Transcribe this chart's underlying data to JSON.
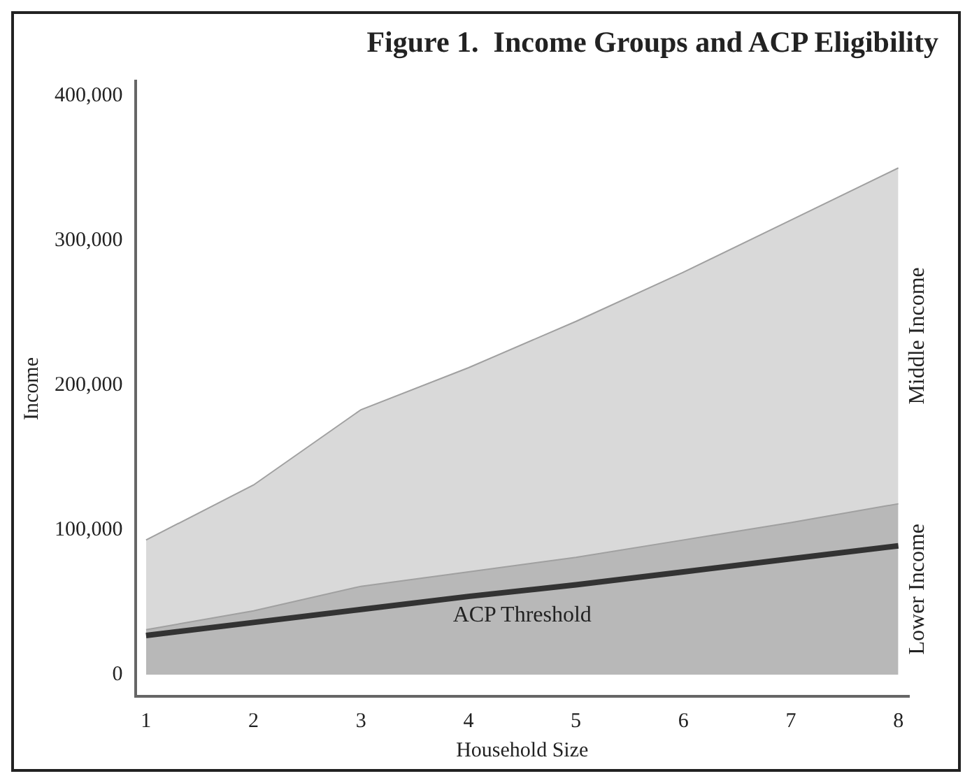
{
  "chart_data": {
    "type": "area",
    "title": "Figure 1.  Income Groups and ACP Eligibility",
    "xlabel": "Household Size",
    "ylabel": "Income",
    "x": [
      1,
      2,
      3,
      4,
      5,
      6,
      7,
      8
    ],
    "stacked": true,
    "series": [
      {
        "name": "Lower Income",
        "color": "#b8b8b8",
        "values": [
          31000,
          44000,
          61000,
          71000,
          81000,
          93000,
          105000,
          118000
        ]
      },
      {
        "name": "Middle Income",
        "color": "#d9d9d9",
        "values": [
          62000,
          87000,
          122000,
          141000,
          163000,
          185000,
          209000,
          232000
        ]
      },
      {
        "name": "ACP Threshold",
        "type": "line",
        "color": "#333333",
        "values": [
          27000,
          36000,
          45000,
          54000,
          62000,
          71000,
          80000,
          89000
        ]
      }
    ],
    "xlim": [
      0.9,
      8.1
    ],
    "xticks": [
      1,
      2,
      3,
      4,
      5,
      6,
      7,
      8
    ],
    "ylim": [
      -15000,
      410000
    ],
    "yticks": [
      0,
      {
        "value": 100000,
        "label": "100,000"
      },
      {
        "value": 200000,
        "label": "200,000"
      },
      {
        "value": 300000,
        "label": "300,000"
      },
      {
        "value": 400000,
        "label": "400,000"
      }
    ],
    "grid": false,
    "legend": false
  }
}
